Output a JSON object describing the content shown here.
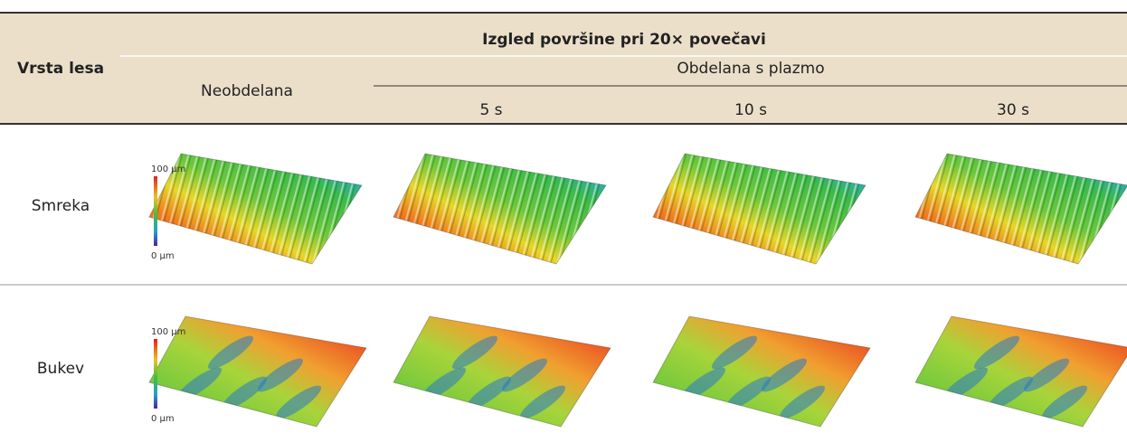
{
  "header": {
    "column_label": "Vrsta lesa",
    "group_title": "Izgled površine pri 20× povečavi",
    "untreated": "Neobdelana",
    "treated_group": "Obdelana s plazmo",
    "times": [
      "5 s",
      "10 s",
      "30 s"
    ]
  },
  "rows": [
    {
      "species": "Smreka",
      "scale_max": "100 µm",
      "scale_min": "0 µm"
    },
    {
      "species": "Bukev",
      "scale_max": "100 µm",
      "scale_min": "0 µm"
    }
  ]
}
